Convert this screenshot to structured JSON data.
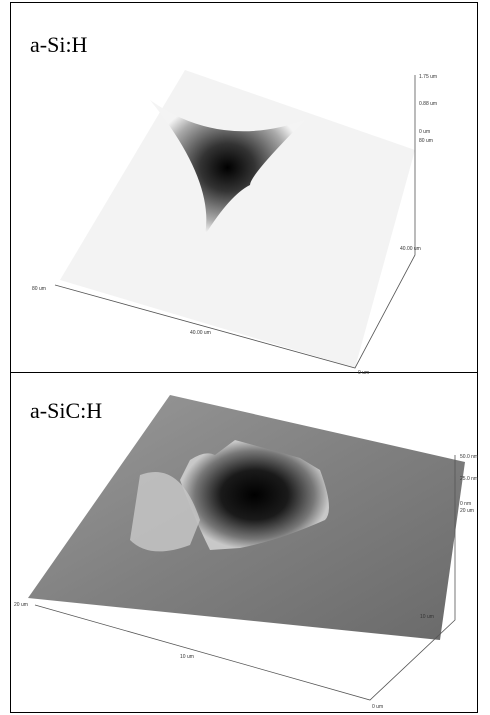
{
  "panels": [
    {
      "label": "a-Si:H",
      "axis_labels": [
        "1.75 um",
        "0.88 um",
        "0 um",
        "80 um",
        "40.00 um",
        "40.00 um",
        "80 um",
        "0 um"
      ]
    },
    {
      "label": "a-SiC:H",
      "axis_labels": [
        "50.0 nm",
        "25.0 nm",
        "0 nm",
        "20 um",
        "10 um",
        "10 um",
        "20 um",
        "0 um"
      ]
    }
  ]
}
